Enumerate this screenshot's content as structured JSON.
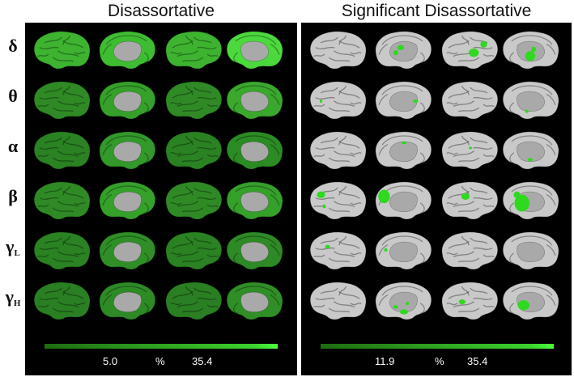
{
  "titles": {
    "left": "Disassortative",
    "right": "Significant Disassortative"
  },
  "bands": [
    {
      "sym": "δ",
      "sub": ""
    },
    {
      "sym": "θ",
      "sub": ""
    },
    {
      "sym": "α",
      "sub": ""
    },
    {
      "sym": "β",
      "sub": ""
    },
    {
      "sym": "γ",
      "sub": "L"
    },
    {
      "sym": "γ",
      "sub": "H"
    }
  ],
  "colorbars": {
    "left": {
      "min": "5.0",
      "unit": "%",
      "max": "35.4"
    },
    "right": {
      "min": "11.9",
      "unit": "%",
      "max": "35.4"
    }
  },
  "colors": {
    "panel_bg": "#000000",
    "brain_gray": "#c9c9c9",
    "medial_gray": "#a9a9a9",
    "significant_green": "#2ed91f",
    "left_intensity": [
      [
        "#3db330",
        "#3fbd32",
        "#3db330",
        "#4bd93d"
      ],
      [
        "#2f8a25",
        "#35a02a",
        "#2f8a25",
        "#3aa82d"
      ],
      [
        "#2a8222",
        "#32992a",
        "#2a8222",
        "#2c8c24"
      ],
      [
        "#2f8a25",
        "#35a02a",
        "#2f8a25",
        "#35a02a"
      ],
      [
        "#2a8222",
        "#2f8f26",
        "#2a8222",
        "#2d8a25"
      ],
      [
        "#2a7f22",
        "#2d8a25",
        "#2a7f22",
        "#2f8f26"
      ]
    ]
  }
}
